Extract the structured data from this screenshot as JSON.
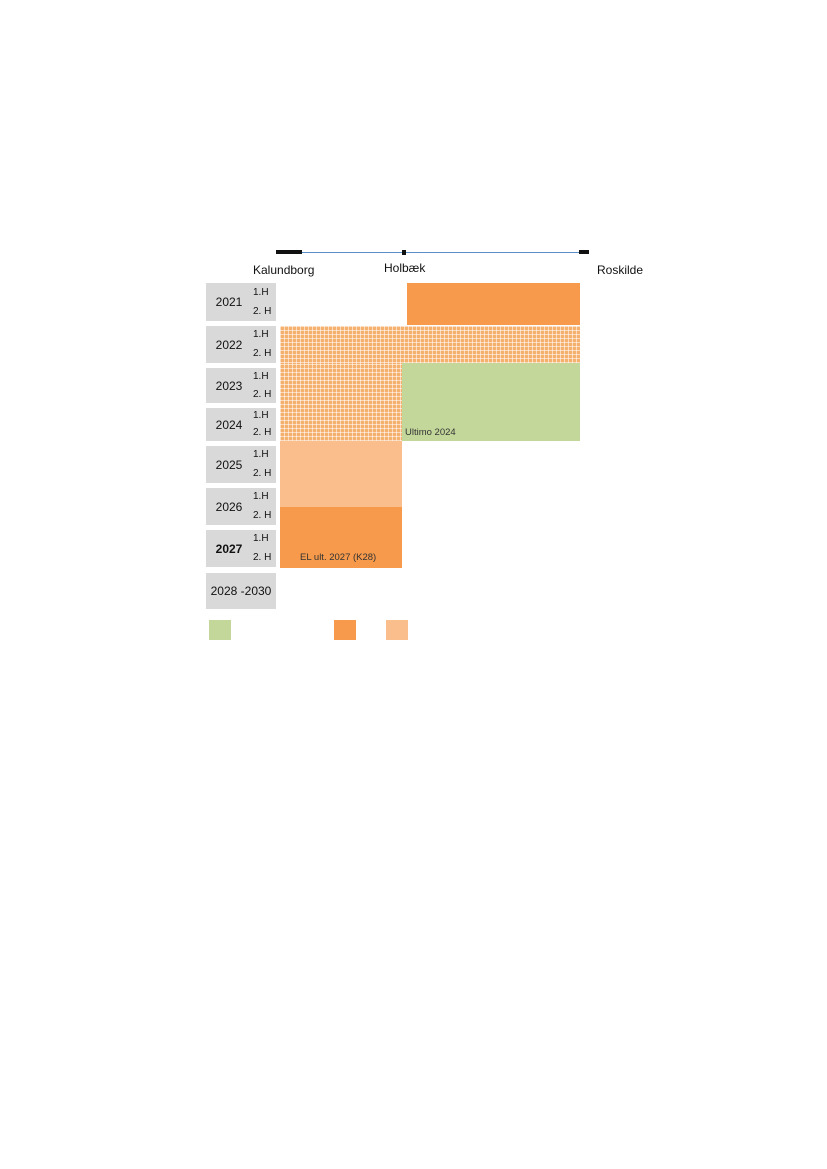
{
  "route": {
    "cities": [
      {
        "name": "Kalundborg"
      },
      {
        "name": "Holbæk"
      },
      {
        "name": "Roskilde"
      }
    ]
  },
  "timeline": {
    "rows": [
      {
        "year": "2021",
        "halves": [
          "1.H",
          "2. H"
        ]
      },
      {
        "year": "2022",
        "halves": [
          "1.H",
          "2. H"
        ]
      },
      {
        "year": "2023",
        "halves": [
          "1.H",
          "2. H"
        ]
      },
      {
        "year": "2024",
        "halves": [
          "1.H",
          "2. H"
        ]
      },
      {
        "year": "2025",
        "halves": [
          "1.H",
          "2. H"
        ]
      },
      {
        "year": "2026",
        "halves": [
          "1.H",
          "2. H"
        ]
      },
      {
        "year": "2027",
        "halves": [
          "1.H",
          "2. H"
        ]
      },
      {
        "year": "2028 -2030",
        "halves": []
      }
    ]
  },
  "blocks": {
    "green_note": "Ultimo 2024",
    "orange_note": "EL ult. 2027 (K28)"
  },
  "legend": {
    "items": [
      {
        "color": "#c4d79b"
      },
      {
        "color": "#f79a4b"
      },
      {
        "color": "#f9be8c"
      }
    ]
  },
  "colors": {
    "solid_orange": "#f79a4b",
    "light_orange": "#f9be8c",
    "green": "#c4d79b",
    "hatched_orange": "#f4b06c",
    "year_cell": "#d9d9d9",
    "route_line": "#5b8fc9"
  }
}
